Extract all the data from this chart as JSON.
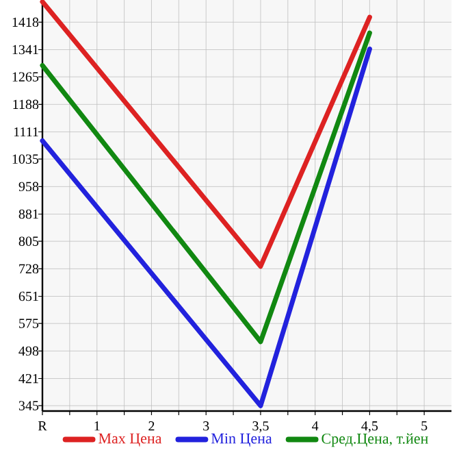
{
  "chart_data": {
    "type": "line",
    "categories": [
      "R",
      "1",
      "2",
      "3",
      "3,5",
      "4",
      "4,5",
      "5"
    ],
    "series": [
      {
        "name": "Max Цена",
        "color": "#dd2222",
        "values": [
          1475,
          null,
          null,
          null,
          735,
          null,
          1432,
          null
        ]
      },
      {
        "name": "Min Цена",
        "color": "#2222dd",
        "values": [
          1086,
          null,
          null,
          null,
          345,
          null,
          1343,
          null
        ]
      },
      {
        "name": "Сред.Цена, т.йен",
        "color": "#118811",
        "values": [
          1297,
          null,
          null,
          null,
          524,
          null,
          1388,
          null
        ]
      }
    ],
    "ylim": [
      330,
      1480
    ],
    "yticks": [
      345,
      421,
      498,
      575,
      651,
      728,
      805,
      881,
      958,
      1035,
      1111,
      1188,
      1265,
      1341,
      1418
    ],
    "grid": true,
    "legend": "bottom",
    "marker": "none",
    "line_style": "solid"
  }
}
